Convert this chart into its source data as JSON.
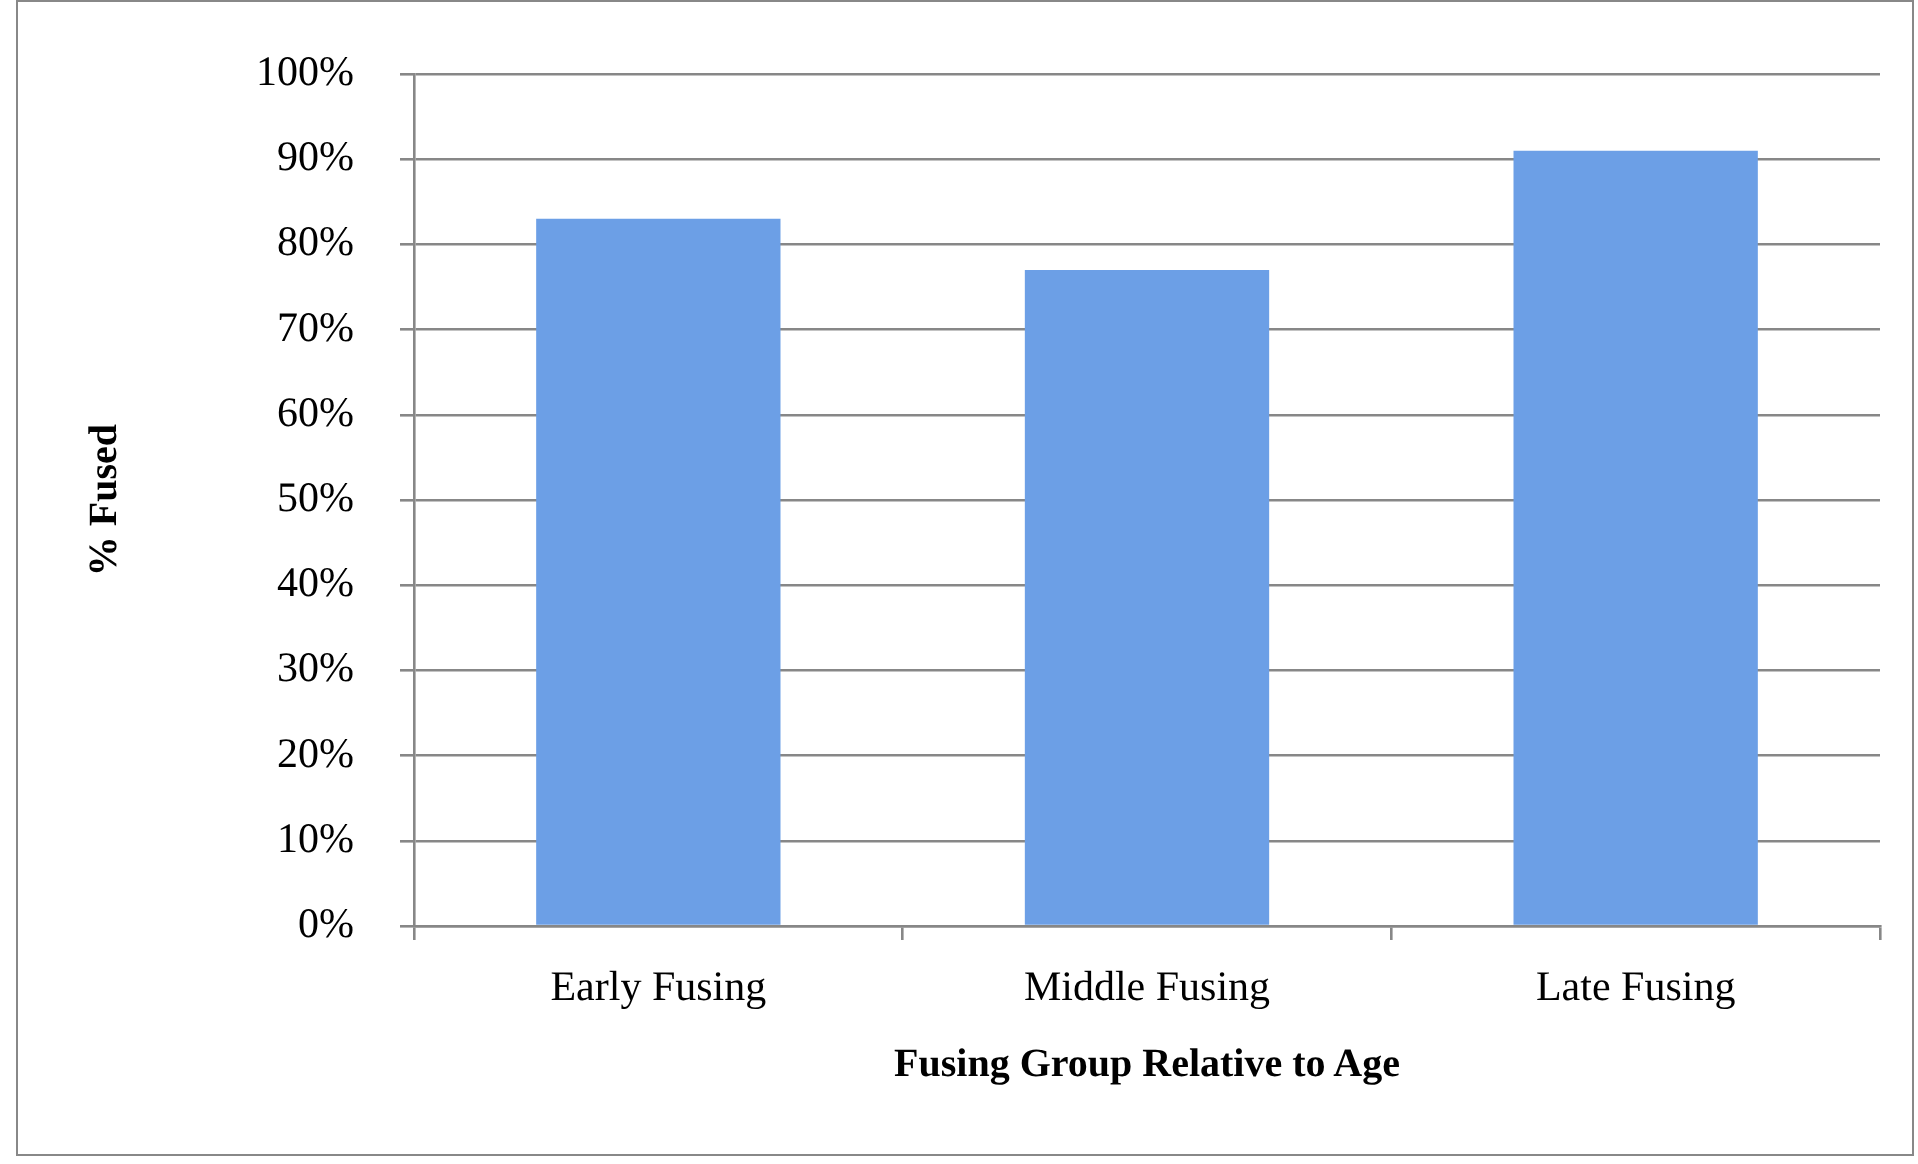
{
  "chart_data": {
    "type": "bar",
    "xlabel": "Fusing Group Relative to Age",
    "ylabel": "% Fused",
    "categories": [
      "Early Fusing",
      "Middle Fusing",
      "Late Fusing"
    ],
    "values": [
      83,
      77,
      91
    ],
    "color": "#6c9fe6",
    "ylim": [
      0,
      100
    ],
    "yticks": [
      {
        "value": 0,
        "label": "0%"
      },
      {
        "value": 10,
        "label": "10%"
      },
      {
        "value": 20,
        "label": "20%"
      },
      {
        "value": 30,
        "label": "30%"
      },
      {
        "value": 40,
        "label": "40%"
      },
      {
        "value": 50,
        "label": "50%"
      },
      {
        "value": 60,
        "label": "60%"
      },
      {
        "value": 70,
        "label": "70%"
      },
      {
        "value": 80,
        "label": "80%"
      },
      {
        "value": 90,
        "label": "90%"
      },
      {
        "value": 100,
        "label": "100%"
      }
    ],
    "grid": "y"
  }
}
